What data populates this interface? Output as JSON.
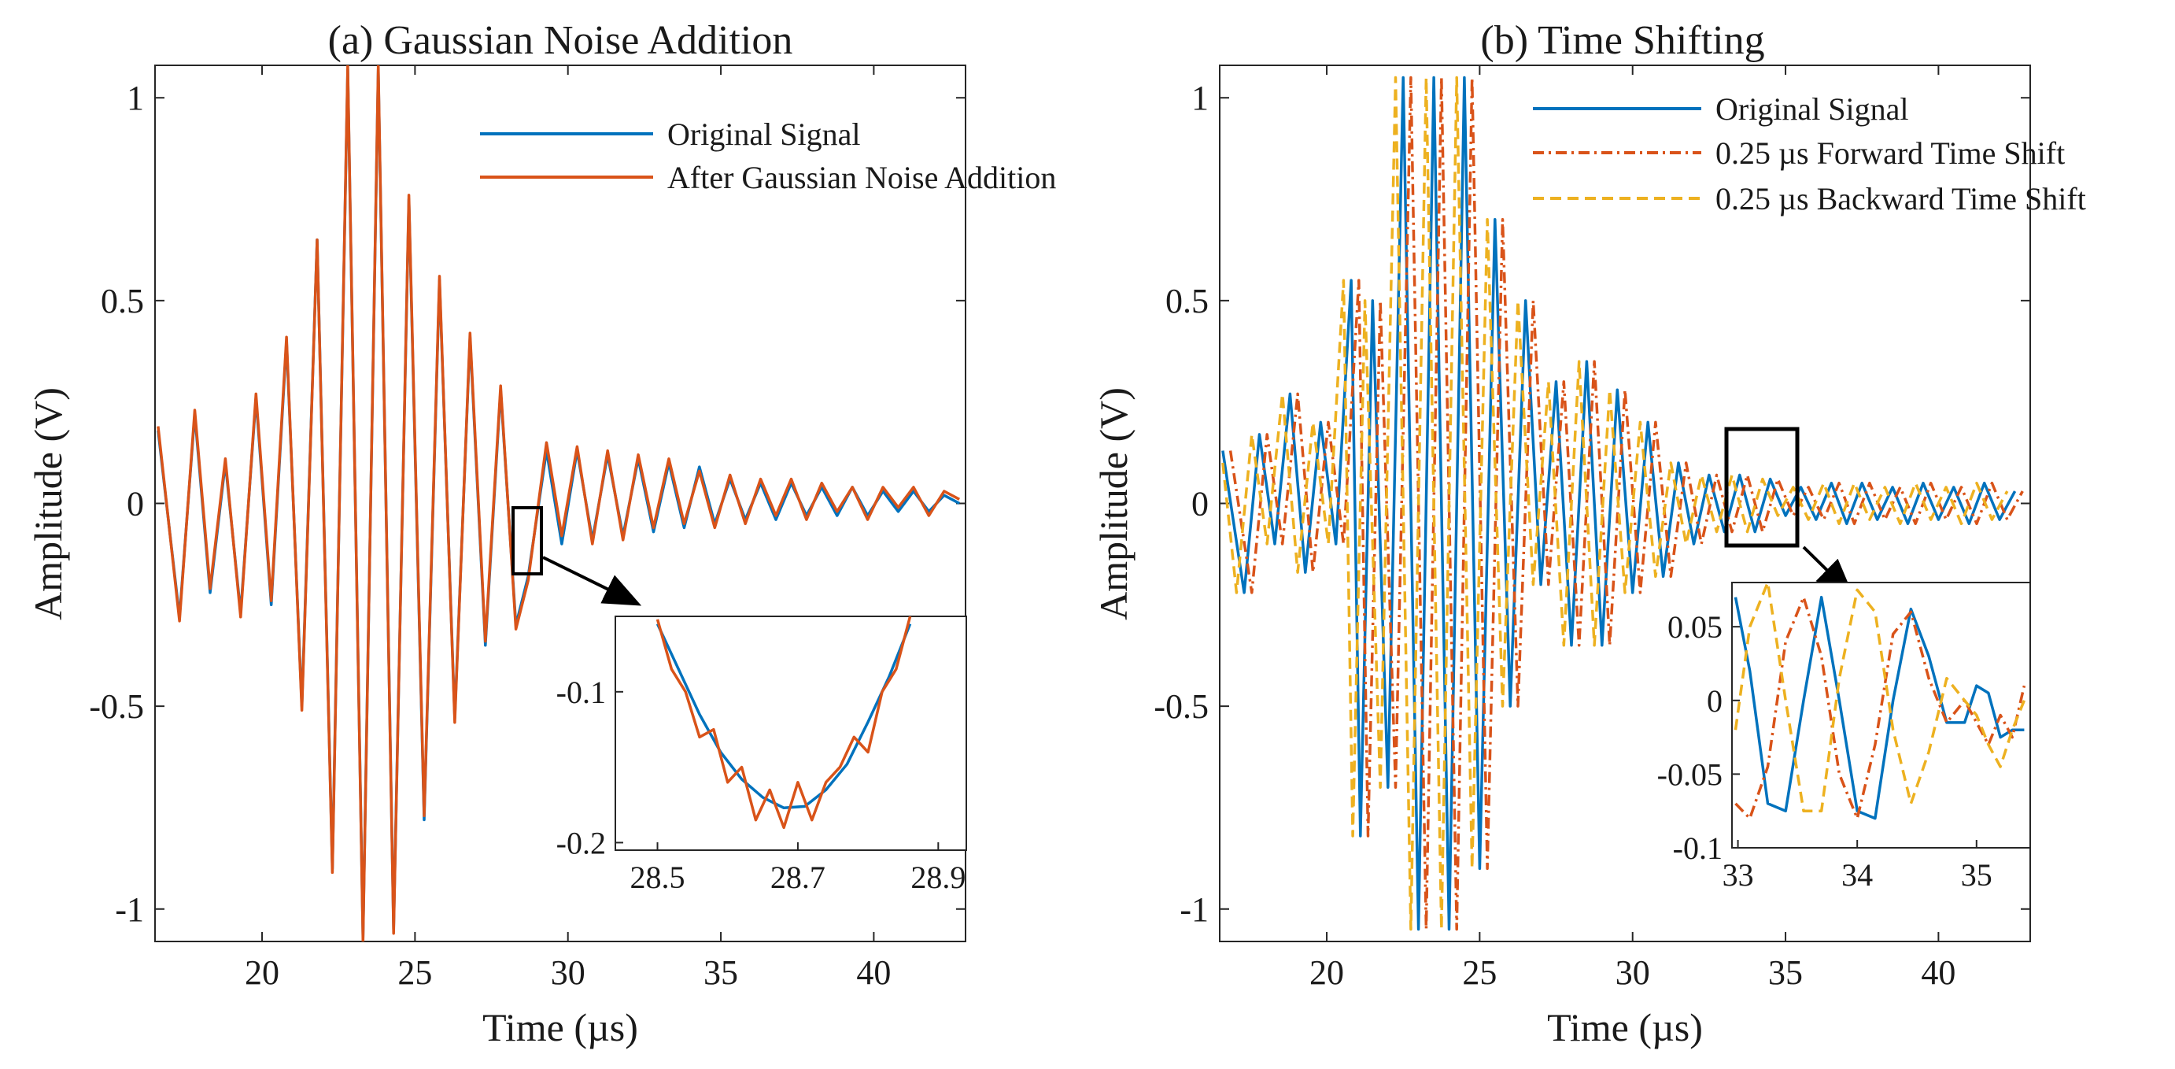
{
  "figure": {
    "colors": {
      "original": "#0072BD",
      "noise": "#D95319",
      "forward": "#D95319",
      "backward": "#EDB120",
      "axis": "#262626"
    }
  },
  "chart_data": [
    {
      "id": "a",
      "type": "line",
      "title": "(a) Gaussian Noise Addition",
      "xlabel": "Time (µs)",
      "ylabel": "Amplitude (V)",
      "xlim": [
        16.5,
        43
      ],
      "ylim": [
        -1.08,
        1.08
      ],
      "xticks": [
        20,
        25,
        30,
        35,
        40
      ],
      "xtick_labels": [
        "20",
        "25",
        "30",
        "35",
        "40"
      ],
      "yticks": [
        -1,
        -0.5,
        0,
        0.5,
        1
      ],
      "ytick_labels": [
        "-1",
        "-0.5",
        "0",
        "0.5",
        "1"
      ],
      "legend": {
        "position": "top-right",
        "entries": [
          {
            "label": "Original Signal",
            "series": "original",
            "style": "solid"
          },
          {
            "label": "After Gaussian Noise Addition",
            "series": "noise",
            "style": "solid"
          }
        ]
      },
      "series": [
        {
          "name": "Original Signal",
          "color": "#0072BD",
          "style": "solid",
          "x": [
            16.6,
            17.3,
            17.8,
            18.3,
            18.8,
            19.3,
            19.8,
            20.3,
            20.8,
            21.3,
            21.8,
            22.3,
            22.8,
            23.3,
            23.8,
            24.3,
            24.8,
            25.3,
            25.8,
            26.3,
            26.8,
            27.3,
            27.8,
            28.3,
            28.7,
            29.3,
            29.8,
            30.3,
            30.8,
            31.3,
            31.8,
            32.3,
            32.8,
            33.3,
            33.8,
            34.3,
            34.8,
            35.3,
            35.8,
            36.3,
            36.8,
            37.3,
            37.8,
            38.3,
            38.8,
            39.3,
            39.8,
            40.3,
            40.8,
            41.3,
            41.8,
            42.3,
            42.8
          ],
          "y": [
            0.18,
            -0.28,
            0.22,
            -0.22,
            0.1,
            -0.27,
            0.26,
            -0.25,
            0.4,
            -0.5,
            0.65,
            -0.9,
            1.07,
            -1.07,
            1.07,
            -1.05,
            0.75,
            -0.78,
            0.55,
            -0.53,
            0.41,
            -0.35,
            0.28,
            -0.3,
            -0.18,
            0.13,
            -0.1,
            0.13,
            -0.09,
            0.12,
            -0.08,
            0.11,
            -0.07,
            0.1,
            -0.06,
            0.09,
            -0.05,
            0.06,
            -0.04,
            0.05,
            -0.04,
            0.05,
            -0.03,
            0.04,
            -0.03,
            0.04,
            -0.03,
            0.03,
            -0.02,
            0.03,
            -0.02,
            0.02,
            0.0
          ]
        },
        {
          "name": "After Gaussian Noise Addition",
          "color": "#D95319",
          "style": "solid",
          "x": [
            16.6,
            17.3,
            17.8,
            18.3,
            18.8,
            19.3,
            19.8,
            20.3,
            20.8,
            21.3,
            21.8,
            22.3,
            22.8,
            23.3,
            23.8,
            24.3,
            24.8,
            25.3,
            25.8,
            26.3,
            26.8,
            27.3,
            27.8,
            28.3,
            28.7,
            29.3,
            29.8,
            30.3,
            30.8,
            31.3,
            31.8,
            32.3,
            32.8,
            33.3,
            33.8,
            34.3,
            34.8,
            35.3,
            35.8,
            36.3,
            36.8,
            37.3,
            37.8,
            38.3,
            38.8,
            39.3,
            39.8,
            40.3,
            40.8,
            41.3,
            41.8,
            42.3,
            42.8
          ],
          "y": [
            0.19,
            -0.29,
            0.23,
            -0.21,
            0.11,
            -0.28,
            0.27,
            -0.24,
            0.41,
            -0.51,
            0.65,
            -0.91,
            1.08,
            -1.08,
            1.08,
            -1.06,
            0.76,
            -0.77,
            0.56,
            -0.54,
            0.42,
            -0.34,
            0.29,
            -0.31,
            -0.19,
            0.15,
            -0.08,
            0.14,
            -0.1,
            0.13,
            -0.09,
            0.12,
            -0.06,
            0.11,
            -0.05,
            0.08,
            -0.06,
            0.07,
            -0.05,
            0.06,
            -0.03,
            0.06,
            -0.04,
            0.05,
            -0.02,
            0.04,
            -0.04,
            0.04,
            -0.01,
            0.04,
            -0.03,
            0.03,
            0.01
          ]
        }
      ],
      "zoom_box": {
        "x": [
          28.3,
          29.0
        ],
        "y": [
          -0.2,
          -0.02
        ]
      },
      "inset": {
        "xlim": [
          28.44,
          28.94
        ],
        "ylim": [
          -0.205,
          -0.05
        ],
        "xticks": [
          28.5,
          28.7,
          28.9
        ],
        "xtick_labels": [
          "28.5",
          "28.7",
          "28.9"
        ],
        "yticks": [
          -0.1,
          -0.2
        ],
        "ytick_labels": [
          "-0.1",
          "-0.2"
        ],
        "series": [
          {
            "name": "Original Signal",
            "x": [
              28.5,
              28.53,
              28.56,
              28.59,
              28.62,
              28.65,
              28.68,
              28.71,
              28.74,
              28.77,
              28.8,
              28.83,
              28.86
            ],
            "y": [
              -0.055,
              -0.085,
              -0.115,
              -0.14,
              -0.158,
              -0.17,
              -0.177,
              -0.176,
              -0.165,
              -0.148,
              -0.12,
              -0.09,
              -0.055
            ]
          },
          {
            "name": "After Gaussian Noise Addition",
            "x": [
              28.5,
              28.52,
              28.54,
              28.56,
              28.58,
              28.6,
              28.62,
              28.64,
              28.66,
              28.68,
              28.7,
              28.72,
              28.74,
              28.76,
              28.78,
              28.8,
              28.82,
              28.84,
              28.86
            ],
            "y": [
              -0.052,
              -0.085,
              -0.1,
              -0.13,
              -0.125,
              -0.16,
              -0.15,
              -0.185,
              -0.165,
              -0.19,
              -0.16,
              -0.185,
              -0.16,
              -0.15,
              -0.13,
              -0.14,
              -0.1,
              -0.085,
              -0.05
            ]
          }
        ]
      }
    },
    {
      "id": "b",
      "type": "line",
      "title": "(b) Time Shifting",
      "xlabel": "Time (µs)",
      "ylabel": "Amplitude (V)",
      "xlim": [
        16.5,
        43
      ],
      "ylim": [
        -1.08,
        1.08
      ],
      "xticks": [
        20,
        25,
        30,
        35,
        40
      ],
      "xtick_labels": [
        "20",
        "25",
        "30",
        "35",
        "40"
      ],
      "yticks": [
        -1,
        -0.5,
        0,
        0.5,
        1
      ],
      "ytick_labels": [
        "-1",
        "-0.5",
        "0",
        "0.5",
        "1"
      ],
      "legend": {
        "position": "top-right",
        "entries": [
          {
            "label": "Original Signal",
            "series": "original",
            "style": "solid"
          },
          {
            "label": "0.25 µs Forward Time Shift",
            "series": "forward",
            "style": "dashdot"
          },
          {
            "label": "0.25 µs Backward Time Shift",
            "series": "backward",
            "style": "dashed"
          }
        ]
      },
      "series": [
        {
          "name": "Original Signal",
          "color": "#0072BD",
          "style": "solid",
          "x": [
            16.6,
            17.3,
            17.8,
            18.3,
            18.8,
            19.3,
            19.8,
            20.3,
            20.8,
            21.1,
            21.5,
            22.0,
            22.5,
            23.0,
            23.5,
            24.0,
            24.5,
            25.0,
            25.5,
            26.0,
            26.5,
            27.0,
            27.5,
            28.0,
            28.5,
            29.0,
            29.5,
            30.0,
            30.5,
            31.0,
            31.5,
            32.0,
            32.5,
            33.0,
            33.5,
            34.0,
            34.5,
            35.0,
            35.5,
            36.0,
            36.5,
            37.0,
            37.5,
            38.0,
            38.5,
            39.0,
            39.5,
            40.0,
            40.5,
            41.0,
            41.5,
            42.0,
            42.5
          ],
          "y": [
            0.13,
            -0.22,
            0.17,
            -0.1,
            0.27,
            -0.17,
            0.2,
            -0.1,
            0.55,
            -0.82,
            0.5,
            -0.7,
            1.05,
            -1.05,
            1.05,
            -1.05,
            1.05,
            -0.9,
            0.7,
            -0.5,
            0.5,
            -0.2,
            0.3,
            -0.35,
            0.35,
            -0.35,
            0.28,
            -0.22,
            0.2,
            -0.18,
            0.1,
            -0.1,
            0.07,
            -0.07,
            0.07,
            -0.07,
            0.06,
            -0.03,
            0.04,
            -0.04,
            0.05,
            -0.05,
            0.05,
            -0.04,
            0.04,
            -0.05,
            0.05,
            -0.04,
            0.04,
            -0.05,
            0.05,
            -0.04,
            0.03
          ]
        },
        {
          "name": "0.25 µs Forward Time Shift",
          "color": "#D95319",
          "style": "dashdot",
          "x": [
            16.85,
            17.55,
            18.05,
            18.55,
            19.05,
            19.55,
            20.05,
            20.55,
            21.05,
            21.35,
            21.75,
            22.25,
            22.75,
            23.25,
            23.75,
            24.25,
            24.75,
            25.25,
            25.75,
            26.25,
            26.75,
            27.25,
            27.75,
            28.25,
            28.75,
            29.25,
            29.75,
            30.25,
            30.75,
            31.25,
            31.75,
            32.25,
            32.75,
            33.25,
            33.75,
            34.25,
            34.75,
            35.25,
            35.75,
            36.25,
            36.75,
            37.25,
            37.75,
            38.25,
            38.75,
            39.25,
            39.75,
            40.25,
            40.75,
            41.25,
            41.75,
            42.25,
            42.75
          ],
          "y": [
            0.13,
            -0.22,
            0.17,
            -0.1,
            0.27,
            -0.17,
            0.2,
            -0.1,
            0.55,
            -0.82,
            0.5,
            -0.7,
            1.05,
            -1.05,
            1.05,
            -1.05,
            1.05,
            -0.9,
            0.7,
            -0.5,
            0.5,
            -0.2,
            0.3,
            -0.35,
            0.35,
            -0.35,
            0.28,
            -0.22,
            0.2,
            -0.18,
            0.1,
            -0.1,
            0.07,
            -0.07,
            0.07,
            -0.07,
            0.06,
            -0.03,
            0.04,
            -0.04,
            0.05,
            -0.05,
            0.05,
            -0.04,
            0.04,
            -0.05,
            0.05,
            -0.04,
            0.04,
            -0.05,
            0.05,
            -0.04,
            0.03
          ]
        },
        {
          "name": "0.25 µs Backward Time Shift",
          "color": "#EDB120",
          "style": "dashed",
          "x": [
            16.6,
            17.05,
            17.55,
            18.05,
            18.55,
            19.05,
            19.55,
            20.05,
            20.55,
            20.85,
            21.25,
            21.75,
            22.25,
            22.75,
            23.25,
            23.75,
            24.25,
            24.75,
            25.25,
            25.75,
            26.25,
            26.75,
            27.25,
            27.75,
            28.25,
            28.75,
            29.25,
            29.75,
            30.25,
            30.75,
            31.25,
            31.75,
            32.25,
            32.75,
            33.25,
            33.75,
            34.25,
            34.75,
            35.25,
            35.75,
            36.25,
            36.75,
            37.25,
            37.75,
            38.25,
            38.75,
            39.25,
            39.75,
            40.25,
            40.75,
            41.25,
            41.75,
            42.25
          ],
          "y": [
            0.1,
            -0.22,
            0.17,
            -0.1,
            0.27,
            -0.17,
            0.2,
            -0.1,
            0.55,
            -0.82,
            0.5,
            -0.7,
            1.05,
            -1.05,
            1.05,
            -1.05,
            1.05,
            -0.9,
            0.7,
            -0.5,
            0.5,
            -0.2,
            0.3,
            -0.35,
            0.35,
            -0.35,
            0.28,
            -0.22,
            0.2,
            -0.18,
            0.1,
            -0.1,
            0.07,
            -0.07,
            0.07,
            -0.07,
            0.06,
            -0.03,
            0.04,
            -0.04,
            0.05,
            -0.05,
            0.05,
            -0.04,
            0.04,
            -0.05,
            0.05,
            -0.04,
            0.04,
            -0.05,
            0.05,
            -0.04,
            0.03
          ]
        }
      ],
      "zoom_box": {
        "x": [
          32.9,
          35.2
        ],
        "y": [
          -0.11,
          0.16
        ]
      },
      "inset": {
        "xlim": [
          32.95,
          35.45
        ],
        "ylim": [
          -0.1,
          0.08
        ],
        "xticks": [
          33,
          34,
          35
        ],
        "xtick_labels": [
          "33",
          "34",
          "35"
        ],
        "yticks": [
          0.05,
          0,
          -0.05,
          -0.1
        ],
        "ytick_labels": [
          "0.05",
          "0",
          "-0.05",
          "-0.1"
        ],
        "series": [
          {
            "name": "Original Signal",
            "x": [
              32.98,
              33.1,
              33.25,
              33.4,
              33.55,
              33.7,
              33.85,
              34.0,
              34.15,
              34.3,
              34.45,
              34.6,
              34.75,
              34.9,
              35.0,
              35.1,
              35.2,
              35.3,
              35.4
            ],
            "y": [
              0.07,
              0.02,
              -0.07,
              -0.075,
              0.0,
              0.07,
              0.0,
              -0.075,
              -0.08,
              0.0,
              0.062,
              0.03,
              -0.015,
              -0.015,
              0.01,
              0.005,
              -0.025,
              -0.02,
              -0.02
            ]
          },
          {
            "name": "0.25 µs Forward Time Shift",
            "x": [
              32.98,
              33.1,
              33.25,
              33.4,
              33.55,
              33.7,
              33.85,
              34.0,
              34.15,
              34.3,
              34.45,
              34.6,
              34.75,
              34.9,
              35.0,
              35.1,
              35.2,
              35.3,
              35.4
            ],
            "y": [
              -0.07,
              -0.08,
              -0.045,
              0.04,
              0.07,
              0.03,
              -0.05,
              -0.08,
              -0.03,
              0.045,
              0.06,
              0.015,
              -0.015,
              0.0,
              -0.015,
              -0.03,
              -0.01,
              -0.025,
              0.01
            ]
          },
          {
            "name": "0.25 µs Backward Time Shift",
            "x": [
              32.98,
              33.1,
              33.25,
              33.4,
              33.55,
              33.7,
              33.85,
              34.0,
              34.15,
              34.3,
              34.45,
              34.6,
              34.75,
              34.9,
              35.0,
              35.1,
              35.2,
              35.3,
              35.4
            ],
            "y": [
              -0.02,
              0.05,
              0.08,
              0.0,
              -0.075,
              -0.075,
              0.015,
              0.075,
              0.06,
              -0.02,
              -0.07,
              -0.035,
              0.015,
              0.0,
              -0.01,
              -0.03,
              -0.045,
              -0.02,
              0.0
            ]
          }
        ]
      }
    }
  ]
}
